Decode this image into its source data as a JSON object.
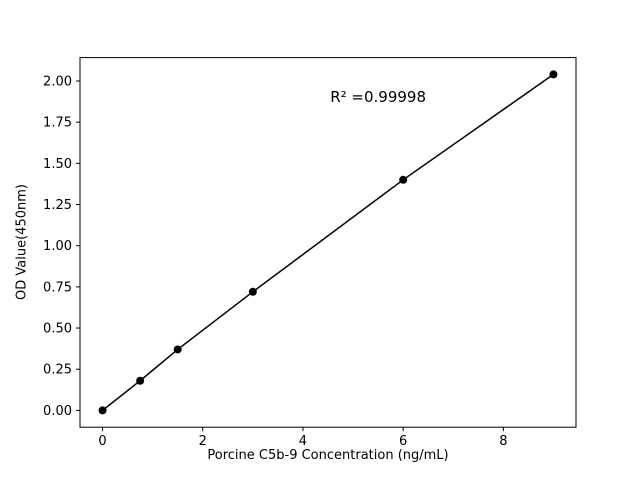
{
  "chart_data": {
    "type": "line",
    "xlabel": "Porcine C5b-9 Concentration (ng/mL)",
    "ylabel": "OD Value(450nm)",
    "x": [
      0,
      0.75,
      1.5,
      3,
      6,
      9
    ],
    "y": [
      0.0,
      0.18,
      0.37,
      0.72,
      1.4,
      2.04
    ],
    "xlim": [
      -0.45,
      9.45
    ],
    "ylim": [
      -0.102,
      2.142
    ],
    "xticks": [
      0,
      2,
      4,
      6,
      8
    ],
    "yticks": [
      0.0,
      0.25,
      0.5,
      0.75,
      1.0,
      1.25,
      1.5,
      1.75,
      2.0
    ],
    "annotation": {
      "text": "R² =0.99998",
      "x": 5.5,
      "y": 1.9
    },
    "marker": "circle",
    "marker_color": "#000000",
    "line_color": "#000000",
    "axis_color": "#000000",
    "background": "#ffffff",
    "grid": false
  }
}
